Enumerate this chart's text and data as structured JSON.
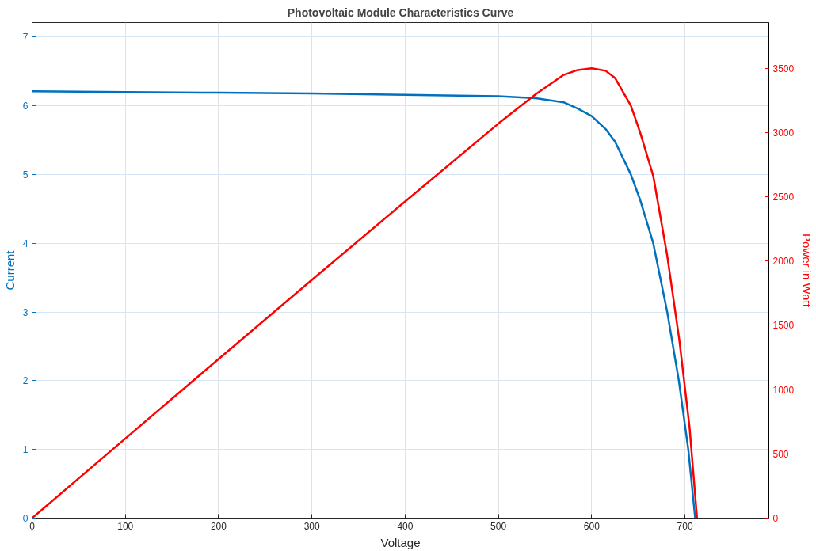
{
  "chart_data": {
    "type": "line",
    "title": "Photovoltaic Module Characteristics Curve",
    "xlabel": "Voltage",
    "ylabel": "Current",
    "y2label": "Power in Watt",
    "xlim": [
      0,
      790
    ],
    "xticks": [
      0,
      100,
      200,
      300,
      400,
      500,
      600,
      700
    ],
    "ylim": [
      0,
      7.21
    ],
    "yticks": [
      0,
      1,
      2,
      3,
      4,
      5,
      6,
      7
    ],
    "y2lim": [
      0,
      3856
    ],
    "y2ticks": [
      0,
      500,
      1000,
      1500,
      2000,
      2500,
      3000,
      3500
    ],
    "grid": true,
    "marker": "none",
    "line_style": "solid",
    "series": [
      {
        "x": [
          0,
          100,
          200,
          300,
          400,
          500,
          540,
          570,
          585,
          600,
          615,
          625,
          642,
          652,
          666,
          681,
          693.5,
          703.6,
          711
        ],
        "values": [
          6.21,
          6.2,
          6.19,
          6.18,
          6.16,
          6.14,
          6.11,
          6.05,
          5.96,
          5.85,
          5.66,
          5.48,
          5.0,
          4.63,
          4.0,
          3.0,
          2.0,
          1.0,
          0
        ],
        "color": "#0072bd"
      },
      {
        "x": [
          0,
          100,
          200,
          300,
          400,
          500,
          540,
          570,
          585,
          600,
          615,
          625,
          642,
          652,
          666,
          681,
          694,
          705,
          713
        ],
        "values": [
          0,
          620,
          1238,
          1854,
          2464,
          3070,
          3299,
          3449,
          3487,
          3500,
          3481,
          3425,
          3210,
          3000,
          2664,
          2043,
          1387,
          704,
          0
        ],
        "color": "#ff0000",
        "axis": "y2"
      }
    ]
  }
}
